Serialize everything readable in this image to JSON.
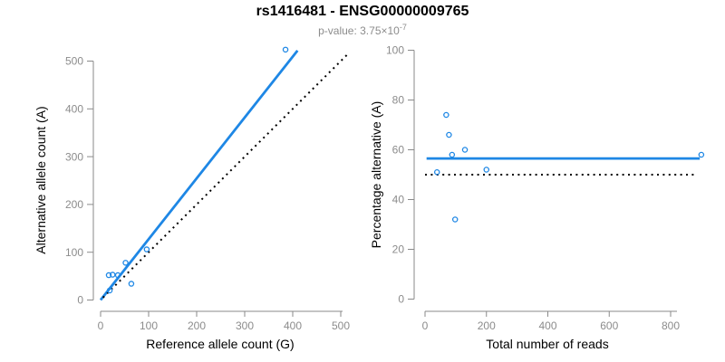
{
  "header": {
    "title": "rs1416481 - ENSG00000009765",
    "subtitle_base": "p-value: 3.75×10",
    "subtitle_exponent": "-7"
  },
  "colors": {
    "accent_blue": "#1E87E5",
    "dotted_black": "#000000",
    "axis_gray": "#8A8A8A",
    "tick_label_gray": "#8C8C8C",
    "title_black": "#000000",
    "subtitle_gray": "#8C8C8C"
  },
  "chart_data": [
    {
      "type": "scatter",
      "panel": "left",
      "xlabel": "Reference allele count (G)",
      "ylabel": "Alternative allele count (A)",
      "xlim": [
        0,
        500
      ],
      "ylim": [
        0,
        500
      ],
      "xticks": [
        0,
        100,
        200,
        300,
        400,
        500
      ],
      "yticks": [
        0,
        100,
        200,
        300,
        400,
        500
      ],
      "grid": false,
      "legend": "none",
      "points": [
        [
          17,
          52
        ],
        [
          25,
          53
        ],
        [
          36,
          52
        ],
        [
          19,
          20
        ],
        [
          52,
          78
        ],
        [
          64,
          34
        ],
        [
          96,
          106
        ],
        [
          385,
          524
        ]
      ],
      "lines": [
        {
          "name": "fit-line",
          "style": "solid",
          "color": "#1E87E5",
          "x1": 0,
          "y1": 0,
          "x2": 410,
          "y2": 522
        },
        {
          "name": "identity-line",
          "style": "dotted",
          "color": "#000000",
          "x1": 5,
          "y1": 5,
          "x2": 515,
          "y2": 515
        }
      ]
    },
    {
      "type": "scatter",
      "panel": "right",
      "xlabel": "Total number of reads",
      "ylabel": "Percentage alternative (A)",
      "xlim": [
        0,
        800
      ],
      "ylim": [
        0,
        100
      ],
      "xticks": [
        0,
        200,
        400,
        600,
        800
      ],
      "yticks": [
        0,
        20,
        40,
        60,
        80,
        100
      ],
      "grid": false,
      "legend": "none",
      "points": [
        [
          69,
          74
        ],
        [
          78,
          66
        ],
        [
          88,
          58
        ],
        [
          39,
          51
        ],
        [
          130,
          60
        ],
        [
          98,
          32
        ],
        [
          200,
          52
        ],
        [
          900,
          58
        ]
      ],
      "lines": [
        {
          "name": "mean-percentage-line",
          "style": "solid",
          "color": "#1E87E5",
          "y": 56.5,
          "x1": 5,
          "x2": 895
        },
        {
          "name": "expected-50-line",
          "style": "dotted",
          "color": "#000000",
          "y": 50,
          "x1": 0,
          "x2": 880
        }
      ]
    }
  ]
}
